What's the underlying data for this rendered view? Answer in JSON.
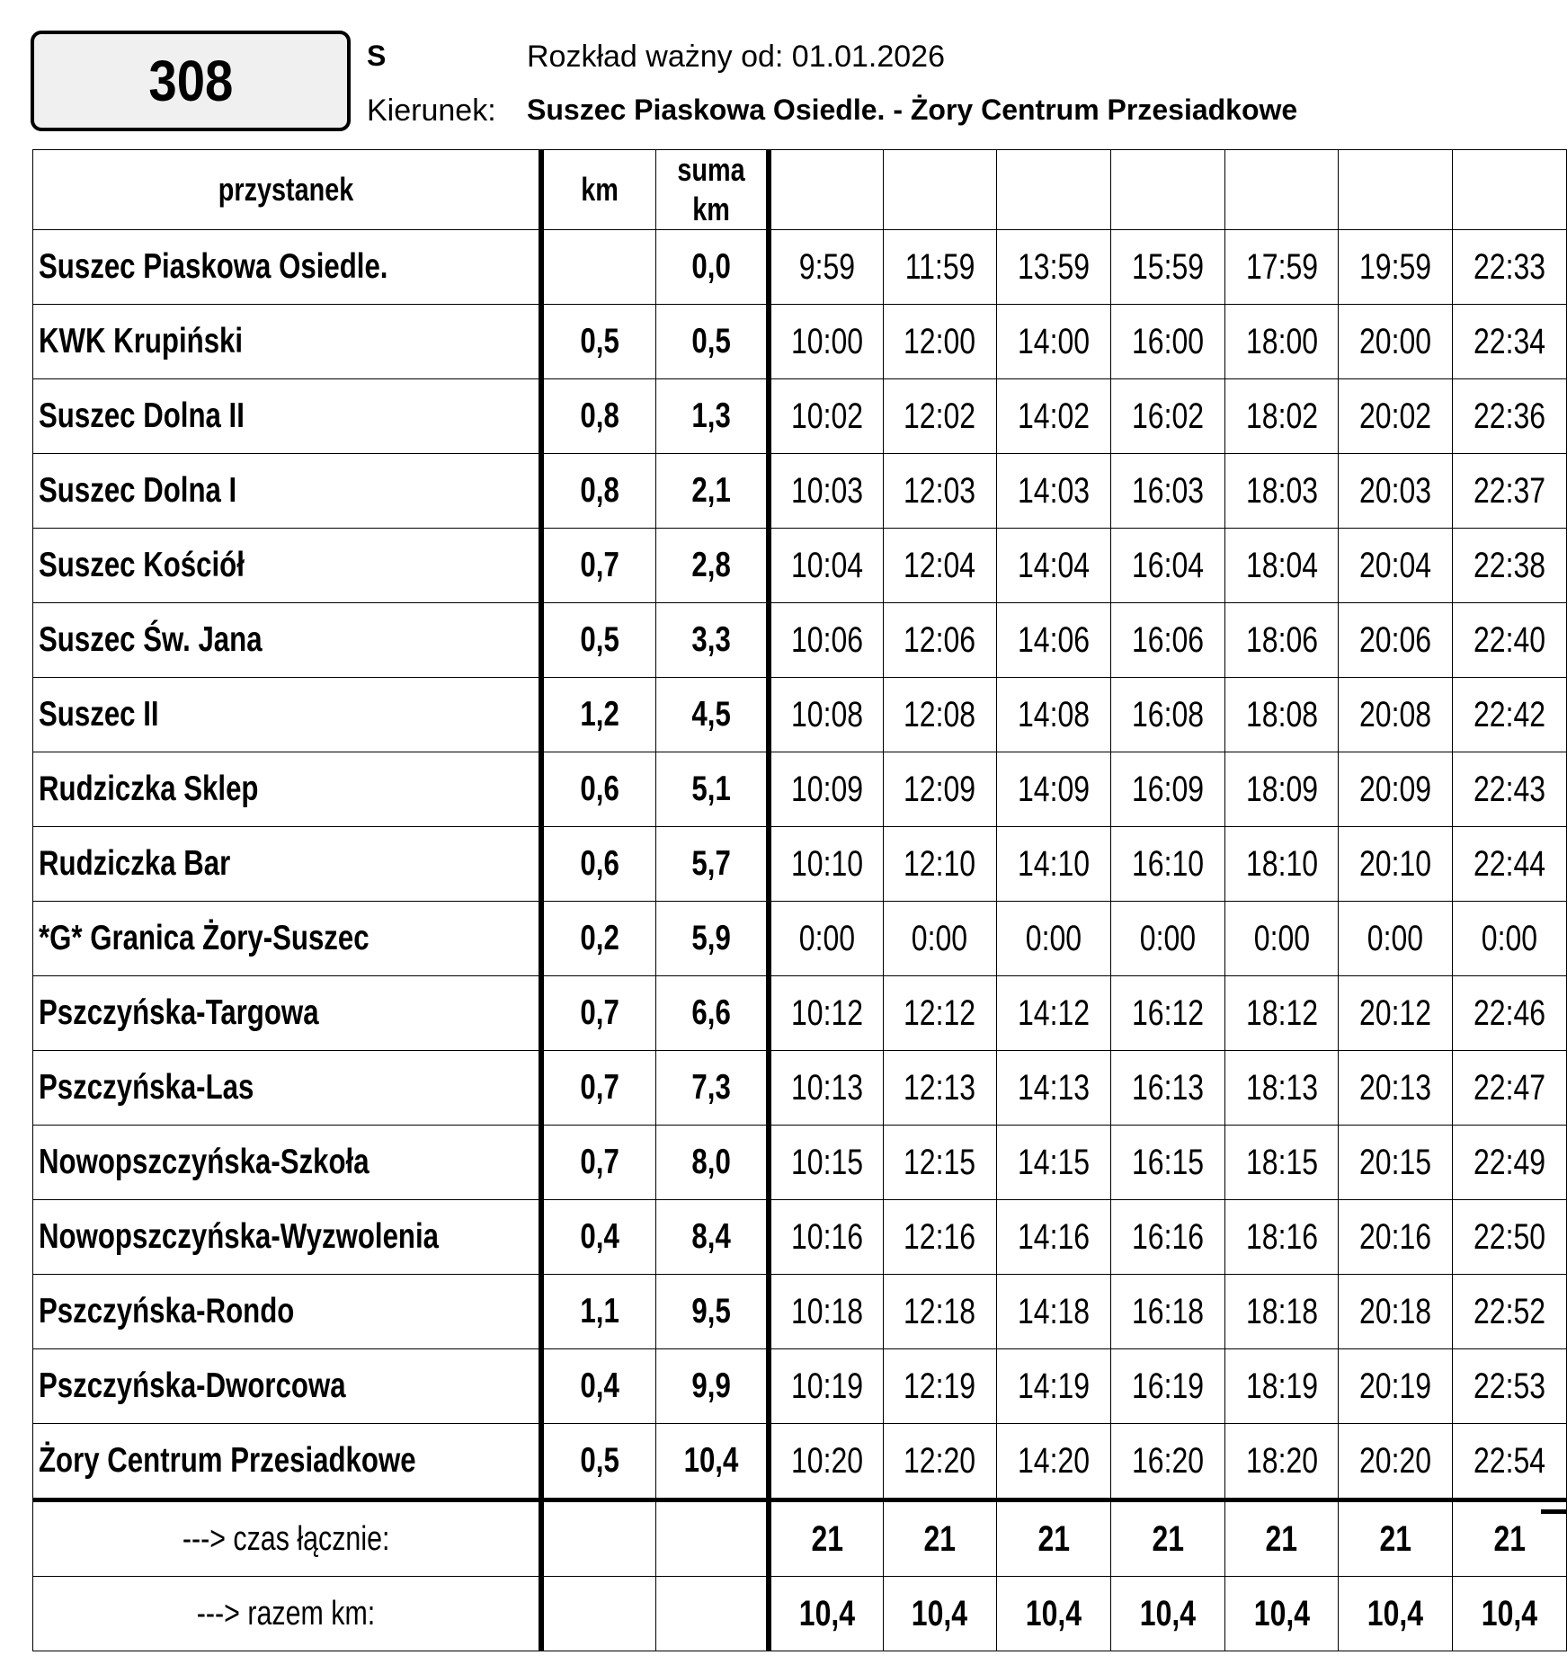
{
  "line": {
    "number": "308",
    "day_type": "S"
  },
  "header": {
    "validity": "Rozkład ważny od: 01.01.2026",
    "direction_label": "Kierunek:",
    "direction": "Suszec Piaskowa Osiedle. - Żory Centrum Przesiadkowe"
  },
  "table": {
    "columns": {
      "stop": "przystanek",
      "km": "km",
      "sum_km_line1": "suma",
      "sum_km_line2": "km"
    },
    "rows": [
      {
        "stop": "Suszec Piaskowa Osiedle.",
        "km": "",
        "sum": "0,0",
        "times": [
          "9:59",
          "11:59",
          "13:59",
          "15:59",
          "17:59",
          "19:59",
          "22:33"
        ]
      },
      {
        "stop": "KWK Krupiński",
        "km": "0,5",
        "sum": "0,5",
        "times": [
          "10:00",
          "12:00",
          "14:00",
          "16:00",
          "18:00",
          "20:00",
          "22:34"
        ]
      },
      {
        "stop": "Suszec Dolna II",
        "km": "0,8",
        "sum": "1,3",
        "times": [
          "10:02",
          "12:02",
          "14:02",
          "16:02",
          "18:02",
          "20:02",
          "22:36"
        ]
      },
      {
        "stop": "Suszec Dolna I",
        "km": "0,8",
        "sum": "2,1",
        "times": [
          "10:03",
          "12:03",
          "14:03",
          "16:03",
          "18:03",
          "20:03",
          "22:37"
        ]
      },
      {
        "stop": "Suszec Kościół",
        "km": "0,7",
        "sum": "2,8",
        "times": [
          "10:04",
          "12:04",
          "14:04",
          "16:04",
          "18:04",
          "20:04",
          "22:38"
        ]
      },
      {
        "stop": "Suszec Św. Jana",
        "km": "0,5",
        "sum": "3,3",
        "times": [
          "10:06",
          "12:06",
          "14:06",
          "16:06",
          "18:06",
          "20:06",
          "22:40"
        ]
      },
      {
        "stop": "Suszec II",
        "km": "1,2",
        "sum": "4,5",
        "times": [
          "10:08",
          "12:08",
          "14:08",
          "16:08",
          "18:08",
          "20:08",
          "22:42"
        ]
      },
      {
        "stop": "Rudziczka Sklep",
        "km": "0,6",
        "sum": "5,1",
        "times": [
          "10:09",
          "12:09",
          "14:09",
          "16:09",
          "18:09",
          "20:09",
          "22:43"
        ]
      },
      {
        "stop": "Rudziczka Bar",
        "km": "0,6",
        "sum": "5,7",
        "times": [
          "10:10",
          "12:10",
          "14:10",
          "16:10",
          "18:10",
          "20:10",
          "22:44"
        ]
      },
      {
        "stop": "*G* Granica Żory-Suszec",
        "km": "0,2",
        "sum": "5,9",
        "times": [
          "0:00",
          "0:00",
          "0:00",
          "0:00",
          "0:00",
          "0:00",
          "0:00"
        ]
      },
      {
        "stop": "Pszczyńska-Targowa",
        "km": "0,7",
        "sum": "6,6",
        "times": [
          "10:12",
          "12:12",
          "14:12",
          "16:12",
          "18:12",
          "20:12",
          "22:46"
        ]
      },
      {
        "stop": "Pszczyńska-Las",
        "km": "0,7",
        "sum": "7,3",
        "times": [
          "10:13",
          "12:13",
          "14:13",
          "16:13",
          "18:13",
          "20:13",
          "22:47"
        ]
      },
      {
        "stop": "Nowopszczyńska-Szkoła",
        "km": "0,7",
        "sum": "8,0",
        "times": [
          "10:15",
          "12:15",
          "14:15",
          "16:15",
          "18:15",
          "20:15",
          "22:49"
        ]
      },
      {
        "stop": "Nowopszczyńska-Wyzwolenia",
        "km": "0,4",
        "sum": "8,4",
        "times": [
          "10:16",
          "12:16",
          "14:16",
          "16:16",
          "18:16",
          "20:16",
          "22:50"
        ]
      },
      {
        "stop": "Pszczyńska-Rondo",
        "km": "1,1",
        "sum": "9,5",
        "times": [
          "10:18",
          "12:18",
          "14:18",
          "16:18",
          "18:18",
          "20:18",
          "22:52"
        ]
      },
      {
        "stop": "Pszczyńska-Dworcowa",
        "km": "0,4",
        "sum": "9,9",
        "times": [
          "10:19",
          "12:19",
          "14:19",
          "16:19",
          "18:19",
          "20:19",
          "22:53"
        ]
      },
      {
        "stop": "Żory Centrum Przesiadkowe",
        "km": "0,5",
        "sum": "10,4",
        "times": [
          "10:20",
          "12:20",
          "14:20",
          "16:20",
          "18:20",
          "20:20",
          "22:54"
        ]
      }
    ],
    "footer": [
      {
        "label": "---> czas łącznie:",
        "values": [
          "21",
          "21",
          "21",
          "21",
          "21",
          "21",
          "21"
        ]
      },
      {
        "label": "---> razem km:",
        "values": [
          "10,4",
          "10,4",
          "10,4",
          "10,4",
          "10,4",
          "10,4",
          "10,4"
        ]
      }
    ]
  }
}
